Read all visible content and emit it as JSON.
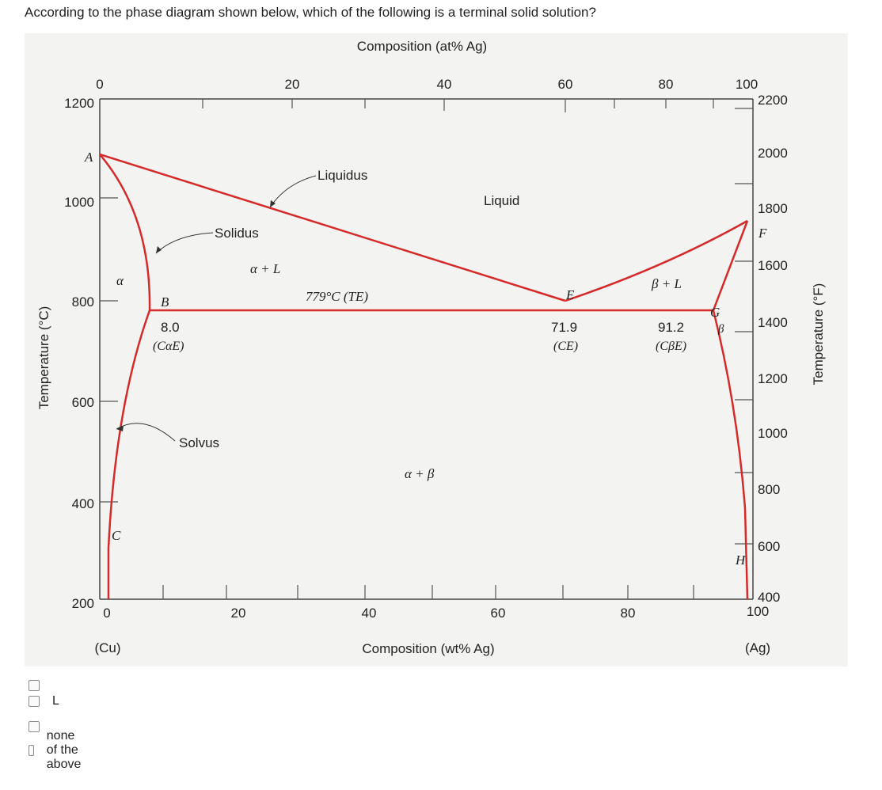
{
  "question": "According to the phase diagram shown below, which of the following is a terminal solid solution?",
  "diagram": {
    "top_axis_title": "Composition (at% Ag)",
    "bottom_axis_title": "Composition (wt% Ag)",
    "left_axis_title": "Temperature (°C)",
    "right_axis_title": "Temperature (°F)",
    "top_ticks": [
      "0",
      "20",
      "40",
      "60",
      "80",
      "100"
    ],
    "bottom_ticks": [
      "0",
      "20",
      "40",
      "60",
      "80",
      "100"
    ],
    "left_ticks": [
      "1200",
      "1000",
      "800",
      "600",
      "400",
      "200"
    ],
    "right_ticks": [
      "2200",
      "2000",
      "1800",
      "1600",
      "1400",
      "1200",
      "1000",
      "800",
      "600",
      "400"
    ],
    "left_end": "(Cu)",
    "right_end": "(Ag)",
    "regions": {
      "liquid": "Liquid",
      "alpha_L": "α + L",
      "beta_L": "β + L",
      "alpha_beta": "α + β",
      "alpha": "α",
      "beta": "β"
    },
    "line_labels": {
      "liquidus": "Liquidus",
      "solidus": "Solidus",
      "solvus": "Solvus"
    },
    "points": {
      "A": "A",
      "B": "B",
      "C": "C",
      "E": "E",
      "F": "F",
      "G": "G",
      "H": "H"
    },
    "eutectic_label": "779°C (TE)",
    "values": {
      "c_alpha_e": "8.0",
      "c_alpha_e_sym": "(CαE)",
      "c_e": "71.9",
      "c_e_sym": "(CE)",
      "c_beta_e": "91.2",
      "c_beta_e_sym": "(CβE)"
    },
    "line_color": "#d42a2a"
  },
  "options": [
    {
      "label": ""
    },
    {
      "label": "L"
    },
    {
      "label": ""
    },
    {
      "label": "none of the above"
    }
  ]
}
